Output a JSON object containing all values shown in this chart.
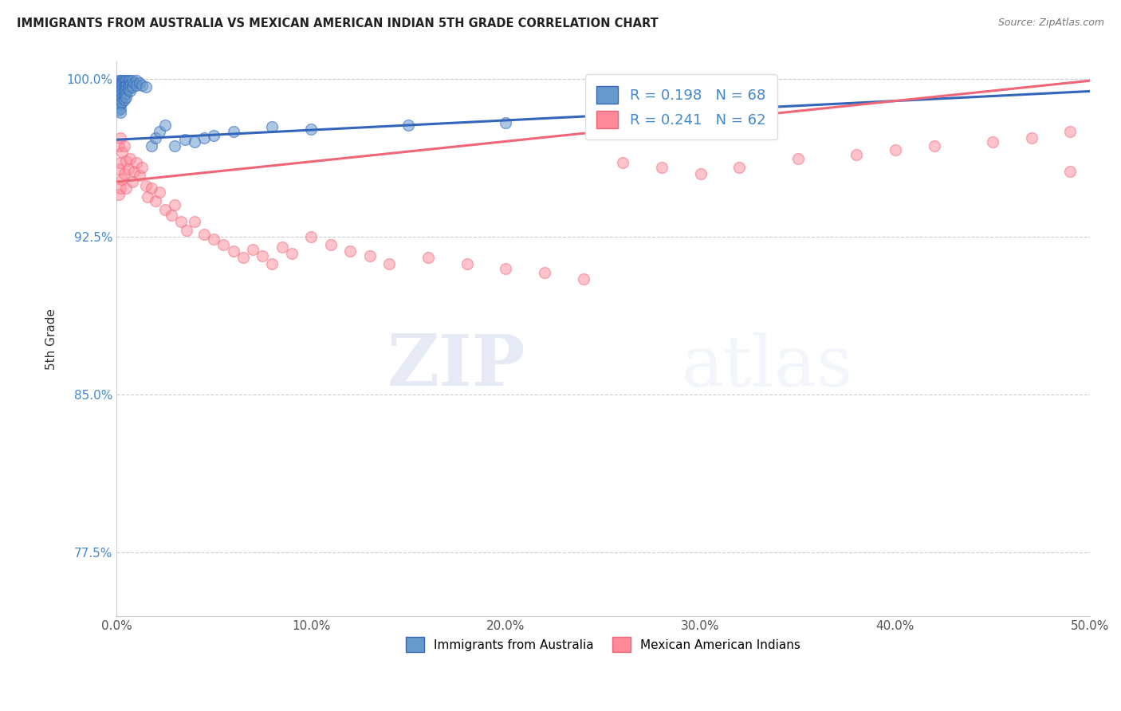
{
  "title": "IMMIGRANTS FROM AUSTRALIA VS MEXICAN AMERICAN INDIAN 5TH GRADE CORRELATION CHART",
  "source": "Source: ZipAtlas.com",
  "ylabel": "5th Grade",
  "xlim": [
    0.0,
    0.5
  ],
  "ylim": [
    0.745,
    1.008
  ],
  "xticks": [
    0.0,
    0.1,
    0.2,
    0.3,
    0.4,
    0.5
  ],
  "xtick_labels": [
    "0.0%",
    "10.0%",
    "20.0%",
    "30.0%",
    "40.0%",
    "50.0%"
  ],
  "yticks": [
    0.775,
    0.85,
    0.925,
    1.0
  ],
  "ytick_labels": [
    "77.5%",
    "85.0%",
    "92.5%",
    "100.0%"
  ],
  "blue_R": 0.198,
  "blue_N": 68,
  "pink_R": 0.241,
  "pink_N": 62,
  "blue_color": "#6699CC",
  "pink_color": "#FF8899",
  "blue_line_color": "#3366BB",
  "pink_line_color": "#EE6677",
  "legend_label_blue": "Immigrants from Australia",
  "legend_label_pink": "Mexican American Indians",
  "watermark_zip": "ZIP",
  "watermark_atlas": "atlas",
  "background_color": "#ffffff",
  "grid_color": "#cccccc",
  "blue_x": [
    0.001,
    0.001,
    0.001,
    0.001,
    0.001,
    0.001,
    0.001,
    0.001,
    0.001,
    0.001,
    0.001,
    0.002,
    0.002,
    0.002,
    0.002,
    0.002,
    0.002,
    0.002,
    0.002,
    0.002,
    0.002,
    0.003,
    0.003,
    0.003,
    0.003,
    0.003,
    0.003,
    0.003,
    0.004,
    0.004,
    0.004,
    0.004,
    0.004,
    0.004,
    0.005,
    0.005,
    0.005,
    0.005,
    0.005,
    0.006,
    0.006,
    0.006,
    0.007,
    0.007,
    0.007,
    0.008,
    0.008,
    0.009,
    0.01,
    0.01,
    0.012,
    0.013,
    0.015,
    0.018,
    0.02,
    0.022,
    0.025,
    0.03,
    0.035,
    0.04,
    0.045,
    0.05,
    0.06,
    0.08,
    0.1,
    0.15,
    0.2,
    0.3
  ],
  "blue_y": [
    0.999,
    0.998,
    0.997,
    0.996,
    0.995,
    0.994,
    0.993,
    0.991,
    0.989,
    0.987,
    0.985,
    0.999,
    0.998,
    0.997,
    0.996,
    0.994,
    0.992,
    0.99,
    0.988,
    0.986,
    0.984,
    0.999,
    0.998,
    0.997,
    0.995,
    0.993,
    0.991,
    0.989,
    0.999,
    0.997,
    0.996,
    0.994,
    0.992,
    0.99,
    0.999,
    0.997,
    0.995,
    0.993,
    0.991,
    0.999,
    0.997,
    0.995,
    0.999,
    0.997,
    0.994,
    0.999,
    0.996,
    0.998,
    0.999,
    0.997,
    0.998,
    0.997,
    0.996,
    0.968,
    0.972,
    0.975,
    0.978,
    0.968,
    0.971,
    0.97,
    0.972,
    0.973,
    0.975,
    0.977,
    0.976,
    0.978,
    0.979,
    0.98
  ],
  "pink_x": [
    0.001,
    0.001,
    0.001,
    0.002,
    0.002,
    0.002,
    0.003,
    0.003,
    0.004,
    0.004,
    0.005,
    0.005,
    0.006,
    0.007,
    0.008,
    0.009,
    0.01,
    0.012,
    0.013,
    0.015,
    0.016,
    0.018,
    0.02,
    0.022,
    0.025,
    0.028,
    0.03,
    0.033,
    0.036,
    0.04,
    0.045,
    0.05,
    0.055,
    0.06,
    0.065,
    0.07,
    0.075,
    0.08,
    0.085,
    0.09,
    0.1,
    0.11,
    0.12,
    0.13,
    0.14,
    0.16,
    0.18,
    0.2,
    0.22,
    0.24,
    0.26,
    0.28,
    0.3,
    0.32,
    0.35,
    0.38,
    0.4,
    0.42,
    0.45,
    0.47,
    0.49,
    0.49
  ],
  "pink_y": [
    0.968,
    0.957,
    0.945,
    0.972,
    0.96,
    0.948,
    0.965,
    0.952,
    0.968,
    0.955,
    0.961,
    0.948,
    0.957,
    0.962,
    0.951,
    0.956,
    0.96,
    0.954,
    0.958,
    0.949,
    0.944,
    0.948,
    0.942,
    0.946,
    0.938,
    0.935,
    0.94,
    0.932,
    0.928,
    0.932,
    0.926,
    0.924,
    0.921,
    0.918,
    0.915,
    0.919,
    0.916,
    0.912,
    0.92,
    0.917,
    0.925,
    0.921,
    0.918,
    0.916,
    0.912,
    0.915,
    0.912,
    0.91,
    0.908,
    0.905,
    0.96,
    0.958,
    0.955,
    0.958,
    0.962,
    0.964,
    0.966,
    0.968,
    0.97,
    0.972,
    0.975,
    0.956
  ],
  "blue_line_x0": 0.0,
  "blue_line_x1": 0.5,
  "blue_line_y0": 0.971,
  "blue_line_y1": 0.994,
  "pink_line_x0": 0.0,
  "pink_line_x1": 0.5,
  "pink_line_y0": 0.951,
  "pink_line_y1": 0.999
}
